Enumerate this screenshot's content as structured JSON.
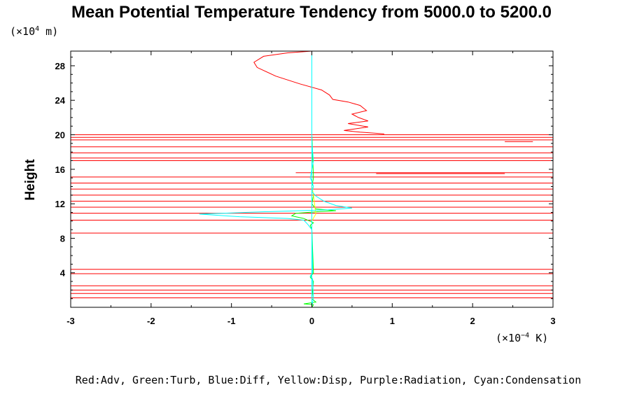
{
  "chart_data": {
    "type": "line",
    "title": "Mean Potential Temperature Tendency from 5000.0 to 5200.0",
    "ylabel": "Height",
    "y_unit": {
      "prefix": "(×10",
      "exp": "4",
      "suffix": " m)"
    },
    "x_unit": {
      "prefix": "(×10",
      "exp": "−4",
      "suffix": " K)"
    },
    "xlim": [
      -3,
      3
    ],
    "ylim": [
      0,
      29.7
    ],
    "xticks": [
      -3,
      -2,
      -1,
      0,
      1,
      2,
      3
    ],
    "xtick_labels": [
      "-3",
      "-2",
      "-1",
      "0",
      "1",
      "2",
      "3"
    ],
    "yticks": [
      4,
      8,
      12,
      16,
      20,
      24,
      28
    ],
    "ytick_labels": [
      "4",
      "8",
      "12",
      "16",
      "20",
      "24",
      "28"
    ],
    "grid": false,
    "legend_text": "Red:Adv, Green:Turb, Blue:Diff, Yellow:Disp, Purple:Radiation, Cyan:Condensation",
    "series": [
      {
        "name": "Adv",
        "color": "#ff0000",
        "points": [
          [
            0,
            29.8
          ],
          [
            -0.3,
            29.5
          ],
          [
            -0.6,
            29.1
          ],
          [
            -0.72,
            28.4
          ],
          [
            -0.68,
            27.8
          ],
          [
            -0.45,
            26.8
          ],
          [
            -0.15,
            25.9
          ],
          [
            0.12,
            25.2
          ],
          [
            0.22,
            24.6
          ],
          [
            0.26,
            24.1
          ],
          [
            0.45,
            23.8
          ],
          [
            0.6,
            23.4
          ],
          [
            0.68,
            22.8
          ],
          [
            0.5,
            22.4
          ],
          [
            0.58,
            22.0
          ],
          [
            0.7,
            21.6
          ],
          [
            0.45,
            21.3
          ],
          [
            0.7,
            20.9
          ],
          [
            0.4,
            20.5
          ],
          [
            0.6,
            20.3
          ],
          [
            0.9,
            20.1
          ]
        ],
        "hlines": [
          {
            "y": 20.0,
            "x1": -3,
            "x2": 3
          },
          {
            "y": 19.7,
            "x1": -3,
            "x2": 3
          },
          {
            "y": 19.4,
            "x1": -3,
            "x2": 3
          },
          {
            "y": 19.2,
            "x1": 2.4,
            "x2": 2.75
          },
          {
            "y": 18.6,
            "x1": -3,
            "x2": 3
          },
          {
            "y": 17.9,
            "x1": -3,
            "x2": 3
          },
          {
            "y": 17.3,
            "x1": -3,
            "x2": 3
          },
          {
            "y": 17.0,
            "x1": -3,
            "x2": 3
          },
          {
            "y": 15.6,
            "x1": -0.2,
            "x2": 3
          },
          {
            "y": 15.5,
            "x1": 0.8,
            "x2": 2.4
          },
          {
            "y": 15.1,
            "x1": -3,
            "x2": 3
          },
          {
            "y": 14.4,
            "x1": -3,
            "x2": 3
          },
          {
            "y": 13.7,
            "x1": -3,
            "x2": 3
          },
          {
            "y": 13.0,
            "x1": -3,
            "x2": 3
          },
          {
            "y": 12.3,
            "x1": -3,
            "x2": 3
          },
          {
            "y": 11.6,
            "x1": -3,
            "x2": 3
          },
          {
            "y": 10.9,
            "x1": -3,
            "x2": 3
          },
          {
            "y": 10.1,
            "x1": -3,
            "x2": 3
          },
          {
            "y": 8.6,
            "x1": -3,
            "x2": 3
          },
          {
            "y": 4.4,
            "x1": -3,
            "x2": 3
          },
          {
            "y": 3.9,
            "x1": -3,
            "x2": 3
          },
          {
            "y": 2.5,
            "x1": -3,
            "x2": 3
          },
          {
            "y": 2.0,
            "x1": -3,
            "x2": 3
          },
          {
            "y": 1.6,
            "x1": -3,
            "x2": 3
          },
          {
            "y": 1.1,
            "x1": -3,
            "x2": 3
          }
        ]
      },
      {
        "name": "Turb",
        "color": "#00ff00",
        "points": [
          [
            0,
            0
          ],
          [
            0.02,
            0.3
          ],
          [
            -0.1,
            0.4
          ],
          [
            0.05,
            0.6
          ],
          [
            0,
            1
          ],
          [
            0.02,
            3
          ],
          [
            -0.02,
            3.5
          ],
          [
            0.02,
            4
          ],
          [
            0,
            9
          ],
          [
            -0.02,
            9.5
          ],
          [
            0.02,
            9.8
          ],
          [
            -0.1,
            10.3
          ],
          [
            -0.25,
            10.6
          ],
          [
            -0.2,
            10.9
          ],
          [
            0.1,
            11.1
          ],
          [
            0.3,
            11.2
          ],
          [
            0.05,
            11.4
          ],
          [
            0,
            12
          ],
          [
            0.02,
            13
          ],
          [
            0,
            14
          ],
          [
            0.02,
            15
          ],
          [
            0,
            20
          ]
        ]
      },
      {
        "name": "Disp",
        "color": "#ffff00",
        "points": [
          [
            0,
            0
          ],
          [
            0,
            10
          ],
          [
            0.03,
            10.5
          ],
          [
            0.05,
            10.8
          ],
          [
            0.04,
            11.5
          ],
          [
            0.03,
            12.3
          ],
          [
            0.02,
            13
          ],
          [
            0,
            14
          ],
          [
            0,
            20
          ]
        ]
      },
      {
        "name": "Condensation",
        "color": "#00ffff",
        "points": [
          [
            0,
            0.2
          ],
          [
            0.02,
            1
          ],
          [
            0.01,
            3.3
          ],
          [
            -0.02,
            3.6
          ],
          [
            0.01,
            4
          ],
          [
            0,
            9
          ],
          [
            -0.05,
            9.6
          ],
          [
            -0.1,
            10.1
          ],
          [
            -0.3,
            10.3
          ],
          [
            -0.9,
            10.5
          ],
          [
            -1.4,
            10.8
          ],
          [
            -0.5,
            11.1
          ],
          [
            0.2,
            11.3
          ],
          [
            0.5,
            11.5
          ],
          [
            0.3,
            11.8
          ],
          [
            0.15,
            12.3
          ],
          [
            0.05,
            12.9
          ],
          [
            0,
            13.4
          ],
          [
            0.02,
            14
          ],
          [
            0,
            14.6
          ],
          [
            -0.02,
            15
          ],
          [
            0,
            16
          ],
          [
            0.02,
            17
          ],
          [
            0,
            19
          ],
          [
            0,
            29.8
          ]
        ]
      },
      {
        "name": "zero-line",
        "color": "#00ffff",
        "points": [
          [
            0,
            0
          ],
          [
            0,
            29.8
          ]
        ]
      }
    ]
  }
}
